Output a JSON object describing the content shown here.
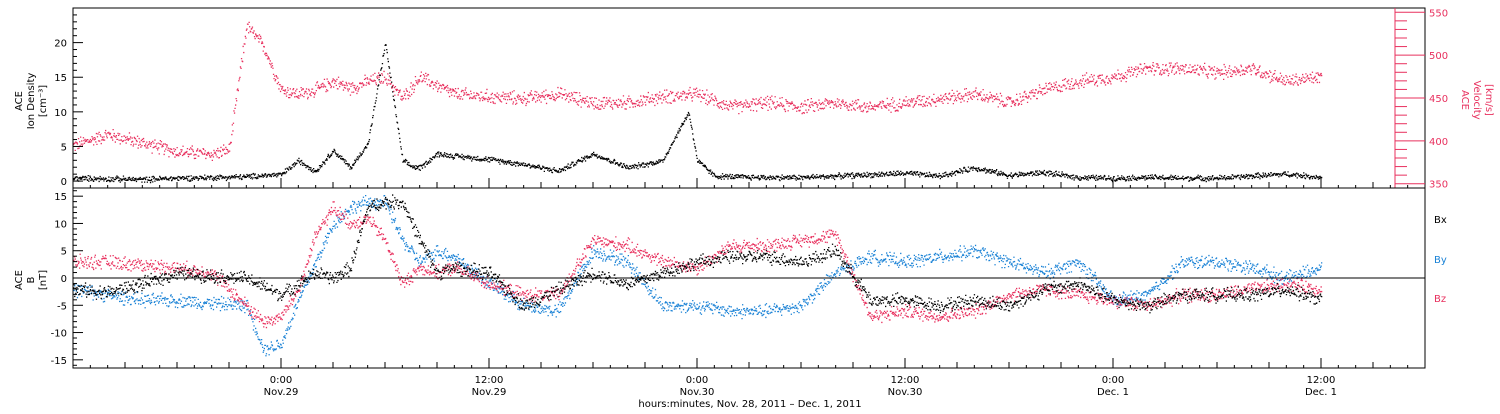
{
  "colors": {
    "black": "#000000",
    "pink": "#e8305e",
    "blue": "#1a82d6"
  },
  "x_axis": {
    "label": "hours:minutes, Nov. 28, 2011 – Dec. 1, 2011",
    "ticks": [
      {
        "hour": 24,
        "time": "0:00",
        "date": "Nov.29"
      },
      {
        "hour": 36,
        "time": "12:00",
        "date": "Nov.29"
      },
      {
        "hour": 48,
        "time": "0:00",
        "date": "Nov.30"
      },
      {
        "hour": 60,
        "time": "12:00",
        "date": "Nov.30"
      },
      {
        "hour": 72,
        "time": "0:00",
        "date": "Dec. 1"
      },
      {
        "hour": 84,
        "time": "12:00",
        "date": "Dec. 1"
      }
    ]
  },
  "chart_data": [
    {
      "type": "scatter",
      "panel": "top",
      "x_range_hours_since_nov28": [
        12,
        90
      ],
      "grid": false,
      "left_axis": {
        "label_lines": [
          "ACE",
          "Ion Density",
          "[cm⁻³]"
        ],
        "ylim": [
          -1,
          25
        ],
        "ticks": [
          0,
          5,
          10,
          15,
          20
        ]
      },
      "right_axis": {
        "label_lines": [
          "ACE",
          "Velocity",
          "[km/s]"
        ],
        "ylim": [
          345,
          555
        ],
        "ticks": [
          350,
          400,
          450,
          500,
          550
        ],
        "color": "#e8305e"
      },
      "series": [
        {
          "axis": "left",
          "color": "#000000",
          "x": [
            12,
            14,
            16,
            18,
            20,
            22,
            23,
            24,
            25,
            26,
            27,
            28,
            29,
            30,
            31,
            31.5,
            32,
            33,
            34,
            36,
            38,
            40,
            42,
            44,
            46,
            47.5,
            48,
            49,
            50,
            52,
            54,
            56,
            58,
            60,
            62,
            64,
            66,
            68,
            70,
            72,
            74,
            76,
            78,
            80,
            82,
            84
          ],
          "y": [
            0.5,
            0.4,
            0.3,
            0.5,
            0.6,
            0.7,
            0.9,
            1.0,
            3.0,
            1.5,
            4.5,
            2.0,
            5.5,
            20.0,
            3.0,
            2.2,
            2.0,
            4.0,
            3.7,
            3.2,
            2.5,
            1.5,
            4.0,
            2.0,
            3.0,
            10.0,
            3.0,
            0.8,
            0.7,
            0.6,
            0.6,
            0.8,
            1.0,
            1.2,
            0.8,
            2.0,
            0.9,
            1.3,
            0.6,
            0.5,
            0.6,
            0.5,
            0.5,
            0.8,
            1.1,
            0.6
          ]
        },
        {
          "axis": "right",
          "color": "#e8305e",
          "x": [
            12,
            14,
            16,
            18,
            20,
            21,
            22,
            23,
            24,
            25,
            26,
            27,
            28,
            29,
            30,
            31,
            32,
            34,
            36,
            38,
            40,
            42,
            44,
            46,
            48,
            50,
            52,
            54,
            56,
            58,
            60,
            62,
            64,
            66,
            68,
            70,
            72,
            74,
            76,
            78,
            80,
            82,
            84
          ],
          "y": [
            395,
            408,
            398,
            388,
            385,
            390,
            535,
            510,
            460,
            455,
            460,
            470,
            462,
            470,
            475,
            450,
            475,
            455,
            452,
            450,
            455,
            445,
            445,
            452,
            455,
            440,
            445,
            440,
            445,
            440,
            445,
            450,
            455,
            445,
            460,
            470,
            475,
            485,
            485,
            480,
            485,
            470,
            475
          ]
        }
      ]
    },
    {
      "type": "scatter",
      "panel": "bottom",
      "x_range_hours_since_nov28": [
        12,
        90
      ],
      "grid": false,
      "zero_line": true,
      "left_axis": {
        "label_lines": [
          "ACE",
          "B",
          "[nT]"
        ],
        "ylim": [
          -16.5,
          16.5
        ],
        "ticks": [
          -15,
          -10,
          -5,
          0,
          5,
          10,
          15
        ]
      },
      "legend": {
        "placement": "right",
        "entries": [
          "Bx",
          "By",
          "Bz"
        ]
      },
      "series": [
        {
          "name": "Bx",
          "color": "#000000",
          "x": [
            12,
            14,
            16,
            18,
            20,
            22,
            24,
            25,
            26,
            27,
            28,
            29,
            30,
            31,
            32,
            33,
            34,
            36,
            38,
            40,
            42,
            44,
            46,
            48,
            50,
            52,
            54,
            56,
            58,
            60,
            62,
            64,
            66,
            68,
            70,
            72,
            74,
            76,
            78,
            80,
            82,
            84
          ],
          "y": [
            -2,
            -2.5,
            -1,
            1,
            0.5,
            0,
            -3,
            -1,
            1,
            0,
            2,
            13,
            14,
            14,
            7,
            1,
            2,
            1,
            -5,
            -2,
            1,
            -1,
            1,
            3,
            4,
            4,
            3,
            5,
            -4,
            -4,
            -5,
            -4,
            -5,
            -2,
            -1,
            -4,
            -5,
            -3,
            -3,
            -3,
            -2,
            -4
          ]
        },
        {
          "name": "By",
          "color": "#1a82d6",
          "x": [
            12,
            14,
            16,
            18,
            20,
            22,
            23,
            24,
            25,
            26,
            27,
            28,
            29,
            30,
            31,
            32,
            33,
            34,
            36,
            38,
            40,
            42,
            44,
            46,
            48,
            50,
            52,
            54,
            56,
            58,
            60,
            62,
            64,
            66,
            68,
            70,
            72,
            74,
            76,
            78,
            80,
            82,
            84
          ],
          "y": [
            -2,
            -3,
            -4,
            -4,
            -4.5,
            -5,
            -13,
            -12,
            -4,
            3,
            10,
            13,
            14,
            14,
            7,
            3,
            5,
            4,
            -1,
            -5,
            -6,
            5,
            3,
            -5,
            -5,
            -6,
            -6,
            -5,
            1,
            4,
            3,
            4,
            5,
            3,
            1,
            3,
            -4,
            -3,
            3,
            3,
            2,
            0,
            2
          ]
        },
        {
          "name": "Bz",
          "color": "#e8305e",
          "x": [
            12,
            14,
            16,
            18,
            20,
            22,
            23,
            24,
            25,
            26,
            27,
            28,
            29,
            30,
            31,
            32,
            33,
            34,
            36,
            38,
            40,
            42,
            44,
            46,
            48,
            50,
            52,
            54,
            56,
            58,
            60,
            62,
            64,
            66,
            68,
            70,
            72,
            74,
            76,
            78,
            80,
            82,
            84
          ],
          "y": [
            3,
            3,
            2.5,
            2,
            1,
            -5,
            -8,
            -7,
            -2,
            8,
            13,
            10,
            11,
            7,
            -1,
            2,
            1,
            2,
            -1,
            -3,
            -3,
            7,
            6,
            3,
            2,
            6,
            6,
            7,
            8,
            -7,
            -6,
            -7,
            -6,
            -3,
            -2,
            -3,
            -4,
            -5,
            -3,
            -3,
            -2,
            -1,
            -2
          ]
        }
      ]
    }
  ]
}
